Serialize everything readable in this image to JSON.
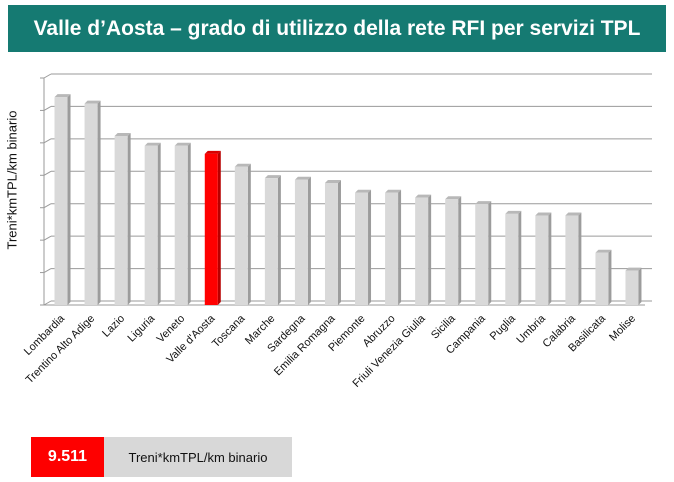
{
  "header": {
    "title": "Valle d’Aosta – grado di utilizzo della rete RFI per servizi TPL"
  },
  "chart_data": {
    "type": "bar",
    "title": "Valle d’Aosta – grado di utilizzo della rete RFI per servizi TPL",
    "xlabel": "",
    "ylabel": "Treni*kmTPL/km binario",
    "ylim": [
      0,
      7
    ],
    "y_tick_labels_shown": false,
    "grid": true,
    "categories": [
      "Lombardia",
      "Trentino Alto Adige",
      "Lazio",
      "Liguria",
      "Veneto",
      "Valle d'Aosta",
      "Toscana",
      "Marche",
      "Sardegna",
      "Emilia Romagna",
      "Piemonte",
      "Abruzzo",
      "Friuli Venezia Giulia",
      "Sicilia",
      "Campania",
      "Puglia",
      "Umbria",
      "Calabria",
      "Basilicata",
      "Molise"
    ],
    "values": [
      6.35,
      6.15,
      5.15,
      4.85,
      4.85,
      4.6,
      4.2,
      3.85,
      3.8,
      3.7,
      3.4,
      3.4,
      3.25,
      3.2,
      3.05,
      2.75,
      2.7,
      2.7,
      1.55,
      1.0
    ],
    "highlight_category": "Valle d'Aosta",
    "colors": {
      "bar": "#d9d9d9",
      "highlight": "#ff0000",
      "grid": "#9a9a9a",
      "header": "#157a72"
    }
  },
  "legend": {
    "value": "9.511",
    "unit": "Treni*kmTPL/km binario"
  }
}
